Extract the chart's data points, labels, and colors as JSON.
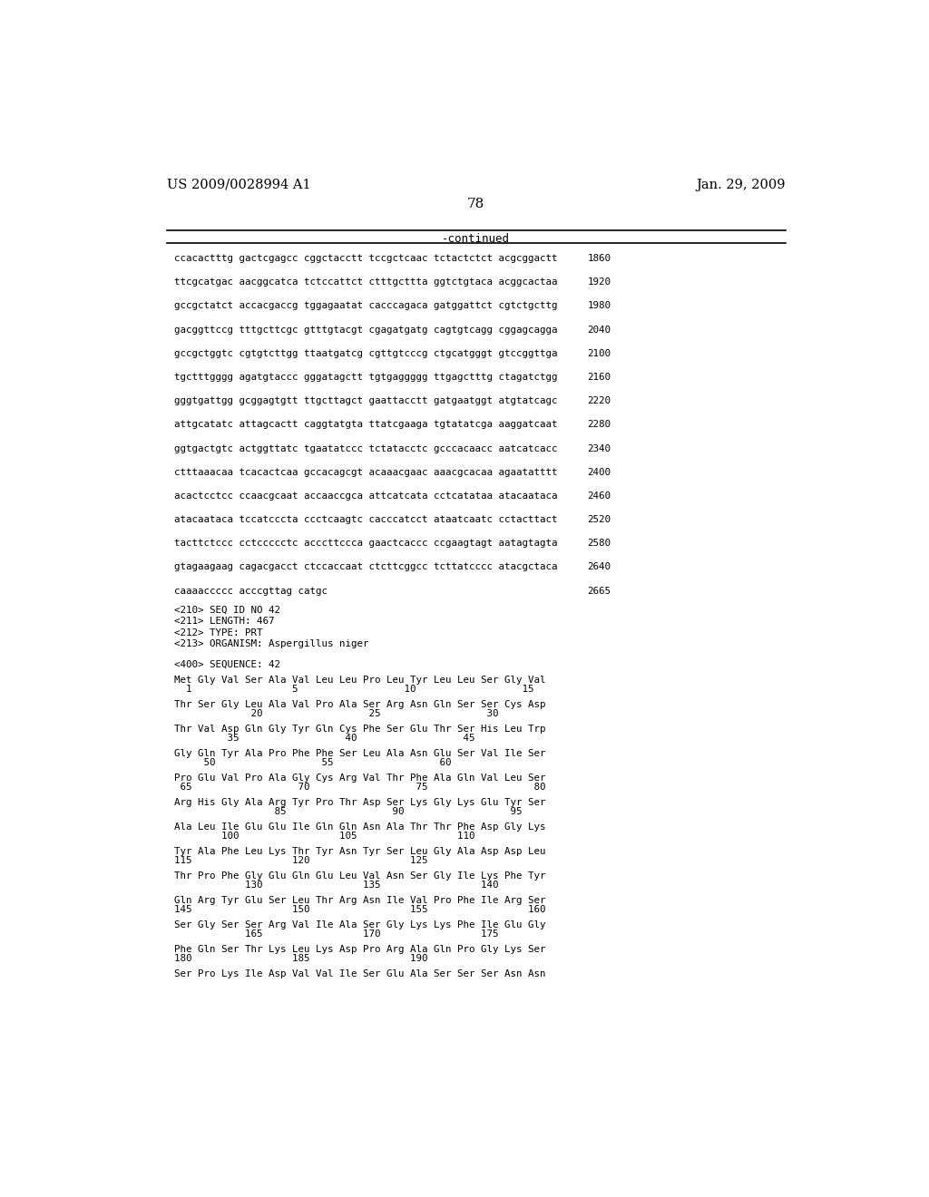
{
  "header_left": "US 2009/0028994 A1",
  "header_right": "Jan. 29, 2009",
  "page_number": "78",
  "continued_label": "-continued",
  "background_color": "#ffffff",
  "text_color": "#000000",
  "sequence_lines": [
    [
      "ccacactttg gactcgagcc cggctacctt tccgctcaac tctactctct acgcggactt",
      "1860"
    ],
    [
      "ttcgcatgac aacggcatca tctccattct ctttgcttta ggtctgtaca acggcactaa",
      "1920"
    ],
    [
      "gccgctatct accacgaccg tggagaatat cacccagaca gatggattct cgtctgcttg",
      "1980"
    ],
    [
      "gacggttccg tttgcttcgc gtttgtacgt cgagatgatg cagtgtcagg cggagcagga",
      "2040"
    ],
    [
      "gccgctggtc cgtgtcttgg ttaatgatcg cgttgtcccg ctgcatgggt gtccggttga",
      "2100"
    ],
    [
      "tgctttgggg agatgtaccc gggatagctt tgtgaggggg ttgagctttg ctagatctgg",
      "2160"
    ],
    [
      "gggtgattgg gcggagtgtt ttgcttagct gaattacctt gatgaatggt atgtatcagc",
      "2220"
    ],
    [
      "attgcatatc attagcactt caggtatgta ttatcgaaga tgtatatcga aaggatcaat",
      "2280"
    ],
    [
      "ggtgactgtc actggttatc tgaatatccc tctatacctc gcccacaacc aatcatcacc",
      "2340"
    ],
    [
      "ctttaaacaa tcacactcaa gccacagcgt acaaacgaac aaacgcacaa agaatatttt",
      "2400"
    ],
    [
      "acactcctcc ccaacgcaat accaaccgca attcatcata cctcatataa atacaataca",
      "2460"
    ],
    [
      "atacaataca tccatcccta ccctcaagtc cacccatcct ataatcaatc cctacttact",
      "2520"
    ],
    [
      "tacttctccc cctccccctc acccttccca gaactcaccc ccgaagtagt aatagtagta",
      "2580"
    ],
    [
      "gtagaagaag cagacgacct ctccaccaat ctcttcggcc tcttatcccc atacgctaca",
      "2640"
    ],
    [
      "caaaaccccc acccgttag catgc",
      "2665"
    ]
  ],
  "seq_info_lines": [
    "<210> SEQ ID NO 42",
    "<211> LENGTH: 467",
    "<212> TYPE: PRT",
    "<213> ORGANISM: Aspergillus niger"
  ],
  "seq400_label": "<400> SEQUENCE: 42",
  "protein_sequence_blocks": [
    {
      "aa_line": "Met Gly Val Ser Ala Val Leu Leu Pro Leu Tyr Leu Leu Ser Gly Val",
      "num_line": "  1                 5                  10                  15"
    },
    {
      "aa_line": "Thr Ser Gly Leu Ala Val Pro Ala Ser Arg Asn Gln Ser Ser Cys Asp",
      "num_line": "             20                  25                  30"
    },
    {
      "aa_line": "Thr Val Asp Gln Gly Tyr Gln Cys Phe Ser Glu Thr Ser His Leu Trp",
      "num_line": "         35                  40                  45"
    },
    {
      "aa_line": "Gly Gln Tyr Ala Pro Phe Phe Ser Leu Ala Asn Glu Ser Val Ile Ser",
      "num_line": "     50                  55                  60"
    },
    {
      "aa_line": "Pro Glu Val Pro Ala Gly Cys Arg Val Thr Phe Ala Gln Val Leu Ser",
      "num_line": " 65                  70                  75                  80"
    },
    {
      "aa_line": "Arg His Gly Ala Arg Tyr Pro Thr Asp Ser Lys Gly Lys Glu Tyr Ser",
      "num_line": "                 85                  90                  95"
    },
    {
      "aa_line": "Ala Leu Ile Glu Glu Ile Gln Gln Asn Ala Thr Thr Phe Asp Gly Lys",
      "num_line": "        100                 105                 110"
    },
    {
      "aa_line": "Tyr Ala Phe Leu Lys Thr Tyr Asn Tyr Ser Leu Gly Ala Asp Asp Leu",
      "num_line": "115                 120                 125"
    },
    {
      "aa_line": "Thr Pro Phe Gly Glu Gln Glu Leu Val Asn Ser Gly Ile Lys Phe Tyr",
      "num_line": "            130                 135                 140"
    },
    {
      "aa_line": "Gln Arg Tyr Glu Ser Leu Thr Arg Asn Ile Val Pro Phe Ile Arg Ser",
      "num_line": "145                 150                 155                 160"
    },
    {
      "aa_line": "Ser Gly Ser Ser Arg Val Ile Ala Ser Gly Lys Lys Phe Ile Glu Gly",
      "num_line": "            165                 170                 175"
    },
    {
      "aa_line": "Phe Gln Ser Thr Lys Leu Lys Asp Pro Arg Ala Gln Pro Gly Lys Ser",
      "num_line": "180                 185                 190"
    },
    {
      "aa_line": "Ser Pro Lys Ile Asp Val Val Ile Ser Glu Ala Ser Ser Ser Asn Asn",
      "num_line": ""
    }
  ]
}
